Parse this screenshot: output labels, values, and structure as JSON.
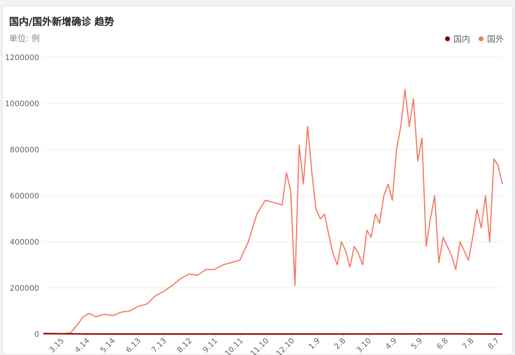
{
  "header": {
    "title": "国内/国外新增确诊 趋势",
    "unit": "单位: 例"
  },
  "legend": [
    {
      "label": "国内",
      "color": "#8b0000"
    },
    {
      "label": "国外",
      "color": "#f47560"
    }
  ],
  "chart_data": {
    "type": "line",
    "title": "国内/国外新增确诊 趋势",
    "ylabel": "单位: 例",
    "ylim": [
      0,
      1200000
    ],
    "yticks": [
      "0",
      "200000",
      "400000",
      "600000",
      "800000",
      "1000000",
      "1200000"
    ],
    "xticks": [
      "3.15",
      "4.14",
      "5.14",
      "6.13",
      "7.13",
      "8.12",
      "9.11",
      "10.11",
      "11.10",
      "12.10",
      "1.9",
      "2.8",
      "3.10",
      "4.9",
      "5.9",
      "6.8",
      "7.8",
      "8.7"
    ],
    "legend_position": "top-right",
    "grid": true,
    "x_range_days": [
      -32,
      510
    ],
    "series": [
      {
        "name": "国内",
        "color": "#8b0000",
        "x": [
          -32,
          0,
          60,
          150,
          250,
          350,
          450,
          510
        ],
        "y": [
          2000,
          500,
          100,
          50,
          100,
          200,
          1000,
          150
        ]
      },
      {
        "name": "国外",
        "color": "#f47560",
        "x": [
          -32,
          -20,
          -10,
          0,
          8,
          15,
          22,
          30,
          40,
          50,
          60,
          70,
          80,
          90,
          100,
          110,
          120,
          130,
          140,
          150,
          160,
          170,
          180,
          190,
          200,
          210,
          220,
          230,
          240,
          250,
          255,
          260,
          265,
          270,
          275,
          280,
          285,
          290,
          295,
          300,
          305,
          310,
          315,
          320,
          325,
          330,
          335,
          340,
          345,
          350,
          355,
          360,
          365,
          370,
          375,
          380,
          385,
          390,
          395,
          400,
          405,
          410,
          415,
          420,
          425,
          430,
          435,
          440,
          445,
          450,
          455,
          460,
          465,
          470,
          475,
          480,
          485,
          490,
          495,
          500,
          505,
          510
        ],
        "y": [
          0,
          0,
          1000,
          5000,
          40000,
          75000,
          90000,
          75000,
          85000,
          80000,
          95000,
          100000,
          120000,
          130000,
          165000,
          185000,
          210000,
          240000,
          260000,
          255000,
          280000,
          280000,
          300000,
          310000,
          320000,
          400000,
          520000,
          580000,
          570000,
          560000,
          700000,
          620000,
          210000,
          820000,
          650000,
          900000,
          700000,
          540000,
          500000,
          520000,
          430000,
          350000,
          300000,
          400000,
          360000,
          290000,
          380000,
          350000,
          300000,
          450000,
          420000,
          520000,
          480000,
          600000,
          650000,
          580000,
          800000,
          900000,
          1060000,
          900000,
          1020000,
          750000,
          850000,
          380000,
          500000,
          600000,
          310000,
          420000,
          380000,
          340000,
          280000,
          400000,
          360000,
          320000,
          420000,
          540000,
          460000,
          600000,
          400000,
          760000,
          730000,
          650000
        ]
      }
    ]
  }
}
